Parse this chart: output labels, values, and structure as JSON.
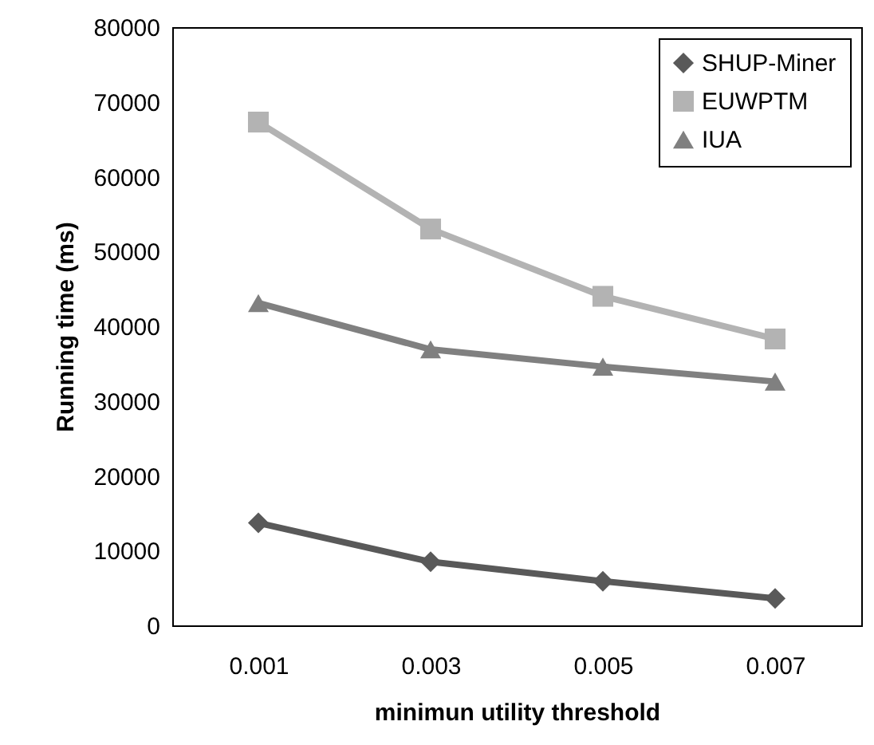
{
  "chart_data": {
    "type": "line",
    "xlabel": "minimun utility threshold",
    "ylabel": "Running time (ms)",
    "categories": [
      "0.001",
      "0.003",
      "0.005",
      "0.007"
    ],
    "series": [
      {
        "name": "SHUP-Miner",
        "color": "#595959",
        "marker": "diamond",
        "values": [
          13700,
          8500,
          5900,
          3600
        ]
      },
      {
        "name": "EUWPTM",
        "color": "#b3b3b3",
        "marker": "square",
        "values": [
          67300,
          53000,
          44000,
          38300
        ]
      },
      {
        "name": "IUA",
        "color": "#808080",
        "marker": "triangle",
        "values": [
          43100,
          36900,
          34600,
          32600
        ]
      }
    ],
    "ylim": [
      0,
      80000
    ],
    "yticks": [
      0,
      10000,
      20000,
      30000,
      40000,
      50000,
      60000,
      70000,
      80000
    ],
    "grid": false,
    "legend": "top right"
  }
}
